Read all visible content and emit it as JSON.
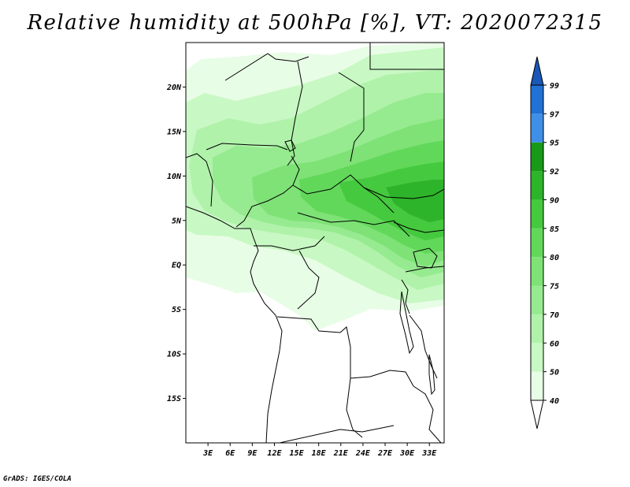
{
  "title": "Relative humidity at 500hPa [%], VT: 2020072315",
  "credit": "GrADS: IGES/COLA",
  "map": {
    "lon_range": [
      0,
      35
    ],
    "lat_range": [
      -20,
      25
    ],
    "lat_ticks": [
      {
        "value": 20,
        "label": "20N"
      },
      {
        "value": 15,
        "label": "15N"
      },
      {
        "value": 10,
        "label": "10N"
      },
      {
        "value": 5,
        "label": "5N"
      },
      {
        "value": 0,
        "label": "EQ"
      },
      {
        "value": -5,
        "label": "5S"
      },
      {
        "value": -10,
        "label": "10S"
      },
      {
        "value": -15,
        "label": "15S"
      }
    ],
    "lon_ticks": [
      {
        "value": 3,
        "label": "3E"
      },
      {
        "value": 6,
        "label": "6E"
      },
      {
        "value": 9,
        "label": "9E"
      },
      {
        "value": 12,
        "label": "12E"
      },
      {
        "value": 15,
        "label": "15E"
      },
      {
        "value": 18,
        "label": "18E"
      },
      {
        "value": 21,
        "label": "21E"
      },
      {
        "value": 24,
        "label": "24E"
      },
      {
        "value": 27,
        "label": "27E"
      },
      {
        "value": 30,
        "label": "30E"
      },
      {
        "value": 33,
        "label": "33E"
      }
    ]
  },
  "colorbar": {
    "levels": [
      {
        "label": "40",
        "color": "#e8fde6"
      },
      {
        "label": "50",
        "color": "#c8f8c3"
      },
      {
        "label": "60",
        "color": "#b0f2aa"
      },
      {
        "label": "70",
        "color": "#96ea8f"
      },
      {
        "label": "75",
        "color": "#7ee276"
      },
      {
        "label": "80",
        "color": "#62d85a"
      },
      {
        "label": "85",
        "color": "#45c93e"
      },
      {
        "label": "90",
        "color": "#2db42a"
      },
      {
        "label": "92",
        "color": "#189a18"
      },
      {
        "label": "95",
        "color": "#3f8fe8"
      },
      {
        "label": "97",
        "color": "#2171d6"
      },
      {
        "label": "99",
        "color": "#1a58b8"
      }
    ]
  }
}
